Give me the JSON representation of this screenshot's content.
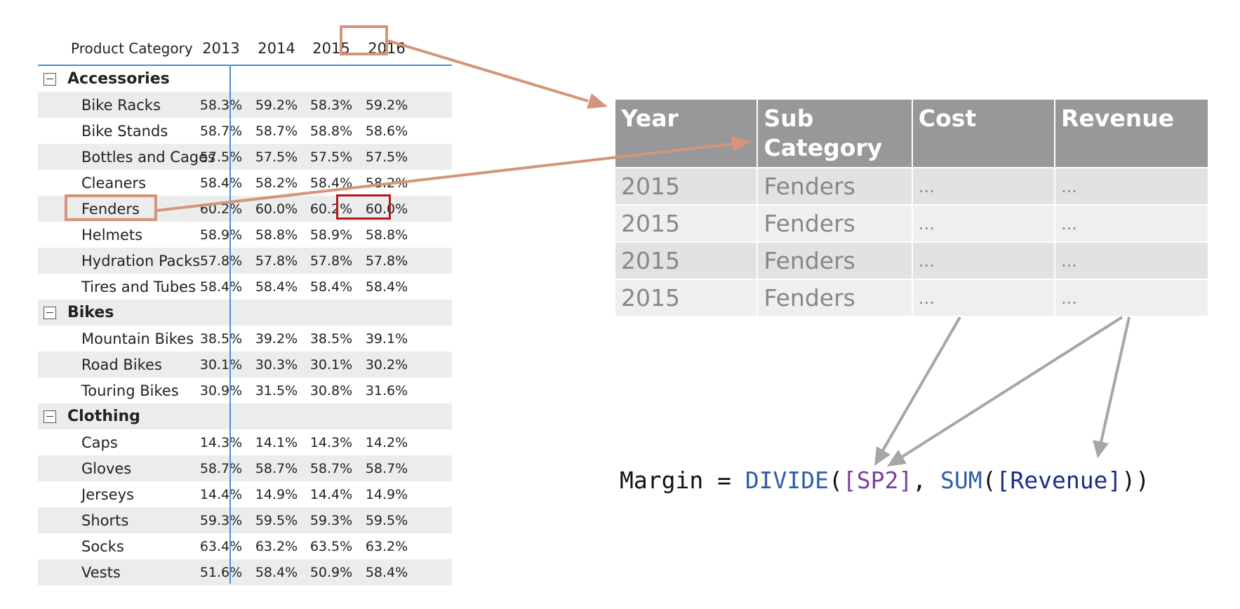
{
  "matrix": {
    "header": {
      "label": "Product Category",
      "years": [
        "2013",
        "2014",
        "2015",
        "2016"
      ]
    },
    "rows": [
      {
        "type": "group",
        "label": "Accessories",
        "values": []
      },
      {
        "type": "item",
        "label": "Bike Racks",
        "values": [
          "58.3%",
          "59.2%",
          "58.3%",
          "59.2%"
        ]
      },
      {
        "type": "item",
        "label": "Bike Stands",
        "values": [
          "58.7%",
          "58.7%",
          "58.8%",
          "58.6%"
        ]
      },
      {
        "type": "item",
        "label": "Bottles and Cages",
        "values": [
          "57.5%",
          "57.5%",
          "57.5%",
          "57.5%"
        ]
      },
      {
        "type": "item",
        "label": "Cleaners",
        "values": [
          "58.4%",
          "58.2%",
          "58.4%",
          "58.2%"
        ]
      },
      {
        "type": "item",
        "label": "Fenders",
        "values": [
          "60.2%",
          "60.0%",
          "60.2%",
          "60.0%"
        ]
      },
      {
        "type": "item",
        "label": "Helmets",
        "values": [
          "58.9%",
          "58.8%",
          "58.9%",
          "58.8%"
        ]
      },
      {
        "type": "item",
        "label": "Hydration Packs",
        "values": [
          "57.8%",
          "57.8%",
          "57.8%",
          "57.8%"
        ]
      },
      {
        "type": "item",
        "label": "Tires and Tubes",
        "values": [
          "58.4%",
          "58.4%",
          "58.4%",
          "58.4%"
        ]
      },
      {
        "type": "group",
        "label": "Bikes",
        "values": []
      },
      {
        "type": "item",
        "label": "Mountain Bikes",
        "values": [
          "38.5%",
          "39.2%",
          "38.5%",
          "39.1%"
        ]
      },
      {
        "type": "item",
        "label": "Road Bikes",
        "values": [
          "30.1%",
          "30.3%",
          "30.1%",
          "30.2%"
        ]
      },
      {
        "type": "item",
        "label": "Touring Bikes",
        "values": [
          "30.9%",
          "31.5%",
          "30.8%",
          "31.6%"
        ]
      },
      {
        "type": "group",
        "label": "Clothing",
        "values": []
      },
      {
        "type": "item",
        "label": "Caps",
        "values": [
          "14.3%",
          "14.1%",
          "14.3%",
          "14.2%"
        ]
      },
      {
        "type": "item",
        "label": "Gloves",
        "values": [
          "58.7%",
          "58.7%",
          "58.7%",
          "58.7%"
        ]
      },
      {
        "type": "item",
        "label": "Jerseys",
        "values": [
          "14.4%",
          "14.9%",
          "14.4%",
          "14.9%"
        ]
      },
      {
        "type": "item",
        "label": "Shorts",
        "values": [
          "59.3%",
          "59.5%",
          "59.3%",
          "59.5%"
        ]
      },
      {
        "type": "item",
        "label": "Socks",
        "values": [
          "63.4%",
          "63.2%",
          "63.5%",
          "63.2%"
        ]
      },
      {
        "type": "item",
        "label": "Vests",
        "values": [
          "51.6%",
          "58.4%",
          "50.9%",
          "58.4%"
        ]
      }
    ]
  },
  "detail_table": {
    "headers": [
      "Year",
      "Sub\nCategory",
      "Cost",
      "Revenue"
    ],
    "rows": [
      [
        "2015",
        "Fenders",
        "...",
        "..."
      ],
      [
        "2015",
        "Fenders",
        "...",
        "..."
      ],
      [
        "2015",
        "Fenders",
        "...",
        "..."
      ],
      [
        "2015",
        "Fenders",
        "...",
        "..."
      ]
    ]
  },
  "formula": {
    "part1": "Margin = ",
    "fn1": "DIVIDE",
    "open1": "(",
    "measure_ref": "[SP2]",
    "sep": ", ",
    "fn2": "SUM",
    "open2": "(",
    "column_ref": "[Revenue]",
    "close": "))"
  },
  "colors": {
    "highlight_salmon": "#d4957a",
    "highlight_red": "#b31b1b",
    "arrow_gray": "#a6a6a6",
    "table_header_gray": "#98979a",
    "matrix_line_blue": "#4a8fd1"
  }
}
